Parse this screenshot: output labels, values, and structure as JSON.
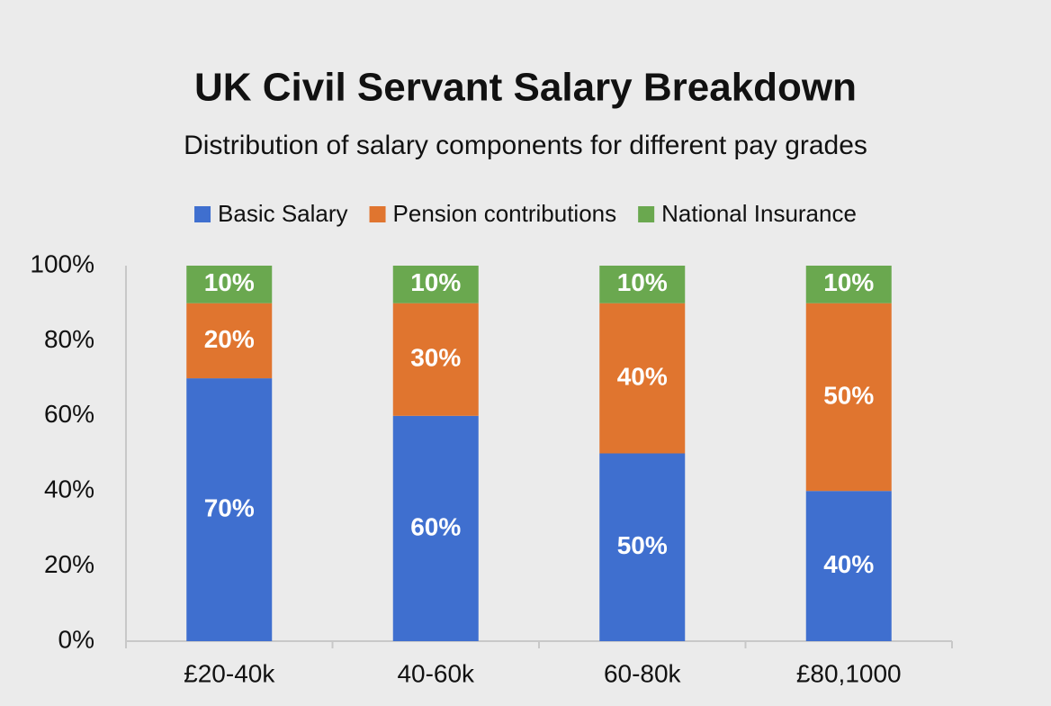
{
  "chart_data": {
    "type": "bar",
    "stacked": true,
    "title": "UK Civil Servant Salary Breakdown",
    "subtitle": "Distribution of salary components for different pay grades",
    "categories": [
      "£20-40k",
      "40-60k",
      "60-80k",
      "£80,1000"
    ],
    "series": [
      {
        "name": "Basic Salary",
        "color": "#3f6fcf",
        "values": [
          70,
          60,
          50,
          40
        ],
        "value_labels": [
          "70%",
          "60%",
          "50%",
          "40%"
        ]
      },
      {
        "name": "Pension contributions",
        "color": "#e0752f",
        "values": [
          20,
          30,
          40,
          50
        ],
        "value_labels": [
          "20%",
          "30%",
          "40%",
          "50%"
        ]
      },
      {
        "name": "National Insurance",
        "color": "#6aa84f",
        "values": [
          10,
          10,
          10,
          10
        ],
        "value_labels": [
          "10%",
          "10%",
          "10%",
          "10%"
        ]
      }
    ],
    "ylim": [
      0,
      100
    ],
    "yticks": [
      {
        "value": 0,
        "label": "0%"
      },
      {
        "value": 20,
        "label": "20%"
      },
      {
        "value": 40,
        "label": "40%"
      },
      {
        "value": 60,
        "label": "60%"
      },
      {
        "value": 80,
        "label": "80%"
      },
      {
        "value": 100,
        "label": "100%"
      }
    ],
    "legend": "top"
  }
}
